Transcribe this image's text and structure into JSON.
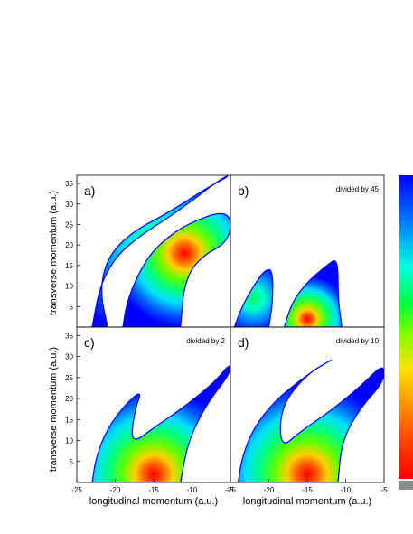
{
  "chart_data": {
    "type": "heatmap",
    "xlabel": "longitudinal momentum (a.u.)",
    "ylabel": "transverse momentum (a.u.)",
    "xlim": [
      -25,
      -5
    ],
    "ylim": [
      0,
      37
    ],
    "x_ticks": [
      "-25",
      "-20",
      "-15",
      "-10",
      "-5"
    ],
    "y_ticks": [
      "5",
      "10",
      "15",
      "20",
      "25",
      "30",
      "35"
    ],
    "colorscale": [
      "#ff0000",
      "#ff4000",
      "#ff8000",
      "#ffbf00",
      "#ffff00",
      "#80ff00",
      "#00ff00",
      "#00ff80",
      "#00ffff",
      "#0080ff",
      "#0000ff"
    ],
    "panels": [
      {
        "label": "a)",
        "note": "",
        "features": [
          {
            "name": "upper-branch",
            "points": [
              [
                -23,
                0
              ],
              [
                -22,
                10
              ],
              [
                -20,
                17
              ],
              [
                -17,
                22
              ],
              [
                -12,
                28
              ],
              [
                -6,
                36.5
              ],
              [
                -5,
                37
              ],
              [
                -8,
                34
              ],
              [
                -13,
                28
              ],
              [
                -18,
                23
              ],
              [
                -21,
                17
              ],
              [
                -22,
                9
              ],
              [
                -21,
                0
              ]
            ],
            "peak": 0.1
          },
          {
            "name": "lower-branch",
            "points": [
              [
                -19,
                0
              ],
              [
                -18.5,
                6
              ],
              [
                -17,
                13
              ],
              [
                -15,
                19
              ],
              [
                -11,
                25
              ],
              [
                -5,
                29
              ],
              [
                -5,
                21
              ],
              [
                -9,
                17
              ],
              [
                -11,
                11
              ],
              [
                -11.5,
                0
              ]
            ],
            "peak": 0.95,
            "peak_at": [
              -11,
              18
            ]
          }
        ]
      },
      {
        "label": "b)",
        "note": "divided by 45",
        "features": [
          {
            "name": "left-lobe",
            "points": [
              [
                -24.5,
                0
              ],
              [
                -23.5,
                5
              ],
              [
                -22,
                10
              ],
              [
                -20.5,
                14
              ],
              [
                -19.5,
                14
              ],
              [
                -19.5,
                6
              ],
              [
                -20,
                0
              ]
            ],
            "peak": 0.25
          },
          {
            "name": "right-lobe",
            "points": [
              [
                -18,
                0
              ],
              [
                -17,
                6
              ],
              [
                -15,
                11
              ],
              [
                -12.5,
                15
              ],
              [
                -11,
                17
              ],
              [
                -11,
                7
              ],
              [
                -10.5,
                0
              ]
            ],
            "peak": 0.9,
            "peak_at": [
              -15,
              2
            ]
          }
        ]
      },
      {
        "label": "c)",
        "note": "divided by 2",
        "features": [
          {
            "name": "v-lobe",
            "points": [
              [
                -23,
                0
              ],
              [
                -22.5,
                6
              ],
              [
                -21,
                13
              ],
              [
                -18.5,
                19
              ],
              [
                -16.5,
                22
              ],
              [
                -17.5,
                17
              ],
              [
                -18,
                9
              ],
              [
                -15,
                13
              ],
              [
                -11,
                18
              ],
              [
                -7,
                24
              ],
              [
                -5,
                28.5
              ],
              [
                -5,
                26
              ],
              [
                -8,
                19
              ],
              [
                -10.5,
                10
              ],
              [
                -11.5,
                0
              ]
            ],
            "peak": 1.0,
            "peak_at": [
              -15,
              2
            ]
          }
        ]
      },
      {
        "label": "d)",
        "note": "divided by 10",
        "features": [
          {
            "name": "v-lobe",
            "points": [
              [
                -24,
                0
              ],
              [
                -23.5,
                6
              ],
              [
                -22,
                13
              ],
              [
                -19,
                20
              ],
              [
                -14,
                27
              ],
              [
                -11,
                30
              ],
              [
                -15,
                26
              ],
              [
                -18.5,
                18
              ],
              [
                -18.5,
                8
              ],
              [
                -16,
                12
              ],
              [
                -12,
                17
              ],
              [
                -8,
                23
              ],
              [
                -5,
                28.5
              ],
              [
                -5,
                24
              ],
              [
                -8,
                18
              ],
              [
                -10.5,
                10
              ],
              [
                -11,
                0
              ]
            ],
            "peak": 1.0,
            "peak_at": [
              -15,
              2
            ]
          }
        ]
      }
    ]
  }
}
